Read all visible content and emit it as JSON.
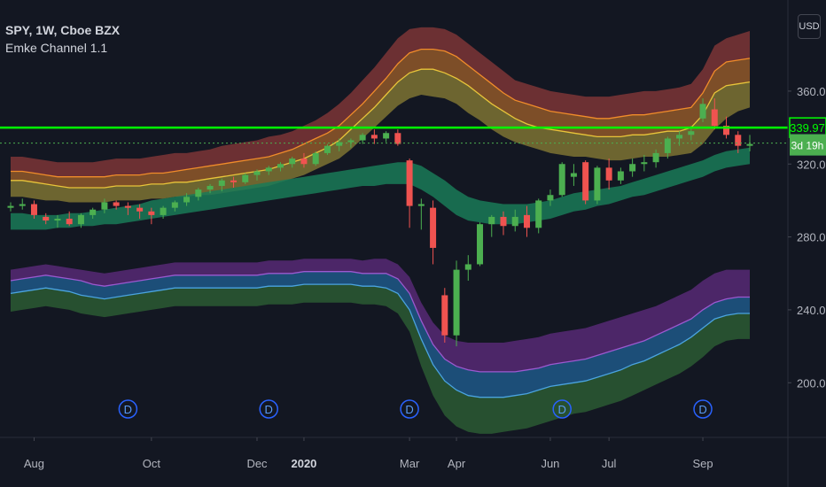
{
  "legend": {
    "symbol_line": "SPY, 1W, Cboe BZX",
    "indicator": "Emke Channel 1.1"
  },
  "currency_button": "USD",
  "colors": {
    "background": "#131722",
    "up": "#4caf50",
    "down": "#ef5350",
    "price_line": "#00ff00",
    "axis_text": "#b2b5be",
    "dividend": "#2962ff"
  },
  "chart_data": {
    "type": "candlestick",
    "title": "SPY, 1W, Cboe BZX",
    "ylim": [
      170,
      410
    ],
    "y_ticks": [
      200,
      240,
      280,
      320,
      360
    ],
    "x_labels": [
      {
        "i": 2,
        "label": "Aug"
      },
      {
        "i": 12,
        "label": "Oct"
      },
      {
        "i": 21,
        "label": "Dec"
      },
      {
        "i": 25,
        "label": "2020",
        "bold": true
      },
      {
        "i": 34,
        "label": "Mar"
      },
      {
        "i": 38,
        "label": "Apr"
      },
      {
        "i": 46,
        "label": "Jun"
      },
      {
        "i": 51,
        "label": "Jul"
      },
      {
        "i": 59,
        "label": "Sep"
      }
    ],
    "horizontal_line": 339.97,
    "last_price": 331.5,
    "price_label": "339.97",
    "countdown_label": "3d 19h",
    "dividend_marker": "D",
    "dividend_indices": [
      10,
      22,
      34,
      47,
      59
    ],
    "candles": [
      [
        296,
        299,
        294,
        297
      ],
      [
        297,
        301,
        295,
        298
      ],
      [
        298,
        300,
        290,
        292
      ],
      [
        291,
        293,
        287,
        289
      ],
      [
        289,
        292,
        285,
        290
      ],
      [
        290,
        294,
        286,
        287
      ],
      [
        287,
        293,
        285,
        292
      ],
      [
        292,
        296,
        290,
        295
      ],
      [
        295,
        301,
        293,
        299
      ],
      [
        299,
        300,
        295,
        297
      ],
      [
        297,
        299,
        292,
        296
      ],
      [
        296,
        298,
        290,
        294
      ],
      [
        294,
        296,
        287,
        292
      ],
      [
        292,
        297,
        290,
        296
      ],
      [
        296,
        300,
        294,
        299
      ],
      [
        299,
        304,
        297,
        302
      ],
      [
        302,
        307,
        300,
        306
      ],
      [
        306,
        309,
        304,
        308
      ],
      [
        308,
        312,
        305,
        311
      ],
      [
        311,
        313,
        307,
        310
      ],
      [
        310,
        315,
        309,
        314
      ],
      [
        314,
        317,
        311,
        316
      ],
      [
        316,
        319,
        314,
        318
      ],
      [
        318,
        321,
        316,
        320
      ],
      [
        320,
        324,
        318,
        323
      ],
      [
        323,
        326,
        318,
        320
      ],
      [
        320,
        327,
        319,
        326
      ],
      [
        326,
        331,
        325,
        330
      ],
      [
        330,
        334,
        327,
        332
      ],
      [
        332,
        334,
        329,
        333
      ],
      [
        333,
        337,
        331,
        336
      ],
      [
        336,
        339,
        331,
        334
      ],
      [
        334,
        338,
        332,
        337
      ],
      [
        337,
        339,
        330,
        331
      ],
      [
        322,
        323,
        285,
        297
      ],
      [
        297,
        301,
        284,
        298
      ],
      [
        296,
        300,
        265,
        274
      ],
      [
        248,
        252,
        222,
        226
      ],
      [
        226,
        267,
        220,
        262
      ],
      [
        262,
        270,
        256,
        265
      ],
      [
        265,
        288,
        264,
        287
      ],
      [
        287,
        292,
        280,
        291
      ],
      [
        291,
        294,
        281,
        286
      ],
      [
        286,
        295,
        283,
        291
      ],
      [
        292,
        297,
        280,
        285
      ],
      [
        285,
        301,
        282,
        300
      ],
      [
        300,
        306,
        297,
        303
      ],
      [
        303,
        321,
        302,
        320
      ],
      [
        313,
        320,
        308,
        315
      ],
      [
        321,
        322,
        298,
        300
      ],
      [
        300,
        319,
        298,
        318
      ],
      [
        318,
        323,
        306,
        311
      ],
      [
        311,
        318,
        309,
        316
      ],
      [
        316,
        323,
        313,
        320
      ],
      [
        320,
        325,
        316,
        321
      ],
      [
        321,
        328,
        318,
        326
      ],
      [
        326,
        335,
        323,
        334
      ],
      [
        334,
        338,
        330,
        336
      ],
      [
        336,
        341,
        333,
        338
      ],
      [
        345,
        356,
        343,
        353
      ],
      [
        350,
        356,
        339,
        341
      ],
      [
        341,
        346,
        334,
        336
      ],
      [
        336,
        338,
        326,
        330
      ],
      [
        330,
        336,
        327,
        331
      ]
    ],
    "bands": {
      "upper": {
        "outer": [
          324,
          324,
          323,
          322,
          321,
          321,
          321,
          321,
          322,
          323,
          323,
          323,
          324,
          325,
          326,
          326,
          327,
          328,
          330,
          331,
          332,
          333,
          335,
          336,
          338,
          341,
          344,
          348,
          353,
          359,
          366,
          373,
          381,
          389,
          394,
          395,
          395,
          394,
          391,
          386,
          381,
          376,
          371,
          366,
          364,
          362,
          360,
          359,
          358,
          357,
          357,
          357,
          358,
          359,
          360,
          360,
          361,
          362,
          364,
          372,
          385,
          389,
          391,
          393
        ],
        "mid": [
          316,
          316,
          315,
          314,
          313,
          313,
          313,
          313,
          313,
          314,
          314,
          314,
          315,
          315,
          316,
          317,
          318,
          319,
          320,
          321,
          322,
          323,
          324,
          326,
          328,
          331,
          334,
          337,
          341,
          347,
          353,
          360,
          367,
          375,
          381,
          383,
          383,
          382,
          379,
          374,
          369,
          364,
          359,
          355,
          353,
          351,
          349,
          348,
          347,
          346,
          345,
          345,
          346,
          347,
          347,
          348,
          349,
          350,
          351,
          359,
          371,
          376,
          377,
          378
        ],
        "inner": [
          311,
          311,
          310,
          309,
          308,
          307,
          307,
          307,
          307,
          308,
          308,
          308,
          309,
          309,
          310,
          310,
          311,
          312,
          313,
          314,
          315,
          316,
          317,
          319,
          321,
          323,
          326,
          329,
          333,
          339,
          345,
          351,
          358,
          365,
          370,
          372,
          372,
          370,
          367,
          363,
          358,
          353,
          349,
          345,
          342,
          340,
          339,
          338,
          337,
          336,
          335,
          335,
          335,
          336,
          336,
          337,
          338,
          338,
          340,
          347,
          359,
          363,
          364,
          365
        ],
        "low": [
          302,
          302,
          301,
          300,
          300,
          299,
          299,
          299,
          299,
          300,
          300,
          300,
          301,
          301,
          302,
          302,
          303,
          303,
          304,
          305,
          306,
          307,
          308,
          310,
          312,
          314,
          317,
          320,
          323,
          328,
          334,
          340,
          346,
          352,
          356,
          358,
          357,
          356,
          353,
          348,
          344,
          339,
          335,
          332,
          330,
          328,
          326,
          325,
          324,
          324,
          323,
          322,
          322,
          323,
          324,
          324,
          324,
          325,
          326,
          331,
          339,
          345,
          349,
          351
        ]
      },
      "middle": {
        "top": [
          293,
          293,
          292,
          292,
          292,
          293,
          293,
          294,
          295,
          296,
          297,
          298,
          300,
          301,
          302,
          303,
          304,
          305,
          306,
          307,
          308,
          309,
          310,
          311,
          312,
          313,
          314,
          315,
          316,
          317,
          318,
          319,
          320,
          321,
          321,
          319,
          315,
          311,
          306,
          302,
          300,
          299,
          298,
          298,
          298,
          299,
          300,
          302,
          304,
          305,
          306,
          307,
          308,
          310,
          312,
          314,
          316,
          318,
          320,
          322,
          325,
          327,
          328,
          329
        ],
        "bottom": [
          284,
          284,
          284,
          284,
          285,
          285,
          286,
          286,
          287,
          287,
          288,
          289,
          290,
          291,
          292,
          293,
          294,
          295,
          296,
          297,
          298,
          299,
          300,
          301,
          302,
          303,
          304,
          305,
          306,
          307,
          308,
          308,
          309,
          309,
          309,
          306,
          302,
          297,
          292,
          289,
          288,
          287,
          287,
          287,
          288,
          289,
          290,
          292,
          294,
          295,
          297,
          298,
          300,
          302,
          303,
          305,
          307,
          309,
          311,
          313,
          316,
          318,
          319,
          320
        ]
      },
      "lower": {
        "top": [
          262,
          263,
          264,
          265,
          264,
          263,
          262,
          261,
          260,
          261,
          262,
          263,
          264,
          265,
          266,
          266,
          266,
          266,
          266,
          266,
          266,
          266,
          267,
          267,
          267,
          268,
          268,
          268,
          268,
          268,
          267,
          268,
          268,
          265,
          258,
          244,
          233,
          226,
          223,
          222,
          222,
          222,
          222,
          223,
          224,
          225,
          227,
          228,
          229,
          230,
          232,
          234,
          236,
          238,
          240,
          242,
          245,
          248,
          251,
          256,
          260,
          262,
          262,
          262
        ],
        "mid": [
          256,
          257,
          258,
          259,
          258,
          257,
          256,
          254,
          253,
          254,
          255,
          256,
          257,
          258,
          259,
          259,
          259,
          259,
          259,
          259,
          259,
          259,
          260,
          260,
          260,
          261,
          261,
          261,
          261,
          261,
          260,
          260,
          260,
          257,
          249,
          234,
          221,
          213,
          209,
          207,
          206,
          206,
          206,
          206,
          207,
          208,
          210,
          211,
          212,
          213,
          215,
          217,
          219,
          221,
          223,
          226,
          229,
          232,
          235,
          240,
          244,
          246,
          247,
          247
        ],
        "inner": [
          249,
          250,
          251,
          252,
          251,
          250,
          248,
          247,
          246,
          247,
          248,
          249,
          250,
          251,
          252,
          252,
          252,
          252,
          252,
          252,
          252,
          252,
          253,
          253,
          253,
          254,
          254,
          254,
          254,
          254,
          253,
          253,
          252,
          249,
          240,
          224,
          210,
          201,
          196,
          193,
          192,
          192,
          192,
          193,
          194,
          196,
          198,
          199,
          200,
          201,
          203,
          205,
          207,
          210,
          212,
          215,
          218,
          221,
          225,
          230,
          235,
          237,
          238,
          238
        ],
        "bottom": [
          239,
          240,
          241,
          242,
          241,
          240,
          238,
          237,
          236,
          237,
          238,
          239,
          240,
          241,
          242,
          242,
          242,
          242,
          242,
          242,
          242,
          242,
          243,
          243,
          243,
          244,
          244,
          244,
          244,
          244,
          243,
          243,
          242,
          238,
          228,
          209,
          193,
          182,
          176,
          173,
          172,
          172,
          173,
          174,
          175,
          177,
          179,
          181,
          183,
          184,
          186,
          188,
          190,
          193,
          196,
          199,
          202,
          205,
          209,
          214,
          220,
          223,
          224,
          224
        ]
      }
    }
  }
}
